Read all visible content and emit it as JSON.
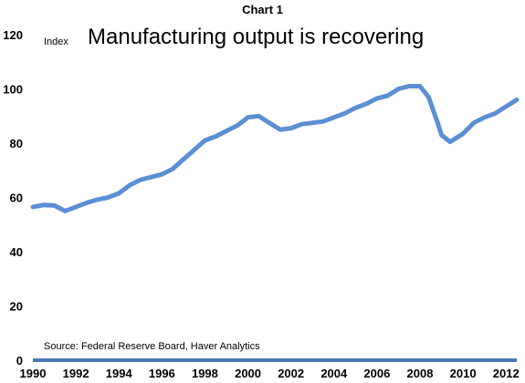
{
  "header": {
    "chart_number": "Chart 1"
  },
  "chart_data": {
    "type": "line",
    "title": "Manufacturing output is recovering",
    "ylabel": "Index",
    "xlabel": "",
    "source": "Source: Federal Reserve Board, Haver Analytics",
    "xlim": [
      1990,
      2012.5
    ],
    "ylim": [
      0,
      120
    ],
    "yticks": [
      0,
      20,
      40,
      60,
      80,
      100,
      120
    ],
    "xticks": [
      "1990",
      "1992",
      "1994",
      "1996",
      "1998",
      "2000",
      "2002",
      "2004",
      "2006",
      "2008",
      "2010",
      "2012"
    ],
    "grid": false,
    "legend": "none",
    "line_color": "#5b8fd4",
    "series": [
      {
        "x": [
          1990,
          1990.5,
          1991,
          1991.5,
          1992,
          1992.5,
          1993,
          1993.5,
          1994,
          1994.5,
          1995,
          1995.5,
          1996,
          1996.5,
          1997,
          1997.5,
          1998,
          1998.5,
          1999,
          1999.5,
          2000,
          2000.5,
          2001,
          2001.5,
          2002,
          2002.5,
          2003,
          2003.5,
          2004,
          2004.5,
          2005,
          2005.5,
          2006,
          2006.5,
          2007,
          2007.5,
          2008,
          2008.4,
          2008.8,
          2009,
          2009.4,
          2010,
          2010.5,
          2011,
          2011.5,
          2012,
          2012.5
        ],
        "y": [
          56.5,
          57.2,
          57,
          55,
          56.5,
          58,
          59.2,
          60,
          61.5,
          64.5,
          66.5,
          67.5,
          68.5,
          70.5,
          74,
          77.5,
          81,
          82.5,
          84.5,
          86.5,
          89.5,
          90,
          87.5,
          85,
          85.5,
          87,
          87.5,
          88,
          89.5,
          91,
          93,
          94.5,
          96.5,
          97.5,
          100,
          101,
          101,
          97,
          88,
          83,
          80.5,
          83.5,
          87.5,
          89.5,
          91,
          93.5,
          96
        ]
      }
    ]
  }
}
